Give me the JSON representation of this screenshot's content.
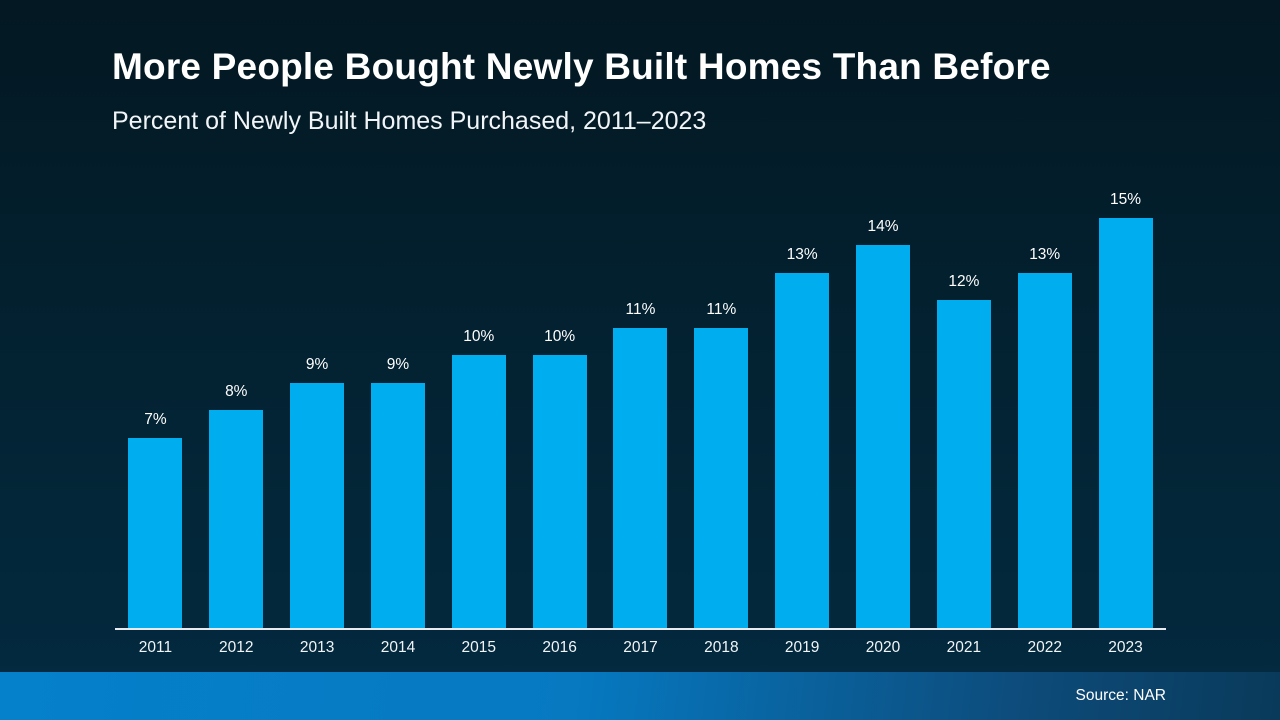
{
  "header": {
    "title": "More People Bought Newly Built Homes Than Before",
    "subtitle": "Percent of Newly Built Homes Purchased, 2011–2023"
  },
  "chart_data": {
    "type": "bar",
    "title": "More People Bought Newly Built Homes Than Before",
    "subtitle": "Percent of Newly Built Homes Purchased, 2011–2023",
    "categories": [
      "2011",
      "2012",
      "2013",
      "2014",
      "2015",
      "2016",
      "2017",
      "2018",
      "2019",
      "2020",
      "2021",
      "2022",
      "2023"
    ],
    "values": [
      7,
      8,
      9,
      9,
      10,
      10,
      11,
      11,
      13,
      14,
      12,
      13,
      15
    ],
    "value_labels": [
      "7%",
      "8%",
      "9%",
      "9%",
      "10%",
      "10%",
      "11%",
      "11%",
      "13%",
      "14%",
      "12%",
      "13%",
      "15%"
    ],
    "xlabel": "",
    "ylabel": "",
    "ylim": [
      0,
      16
    ],
    "grid": false,
    "legend": false,
    "bar_color": "#00aeef",
    "label_color": "#ffffff",
    "axis_line_color": "#e8ebee",
    "background_top": "#031822",
    "background_bottom": "#04304a"
  },
  "footer": {
    "source": "Source: NAR",
    "band_color_left": "#0580cb",
    "band_color_right": "#093a5a"
  }
}
